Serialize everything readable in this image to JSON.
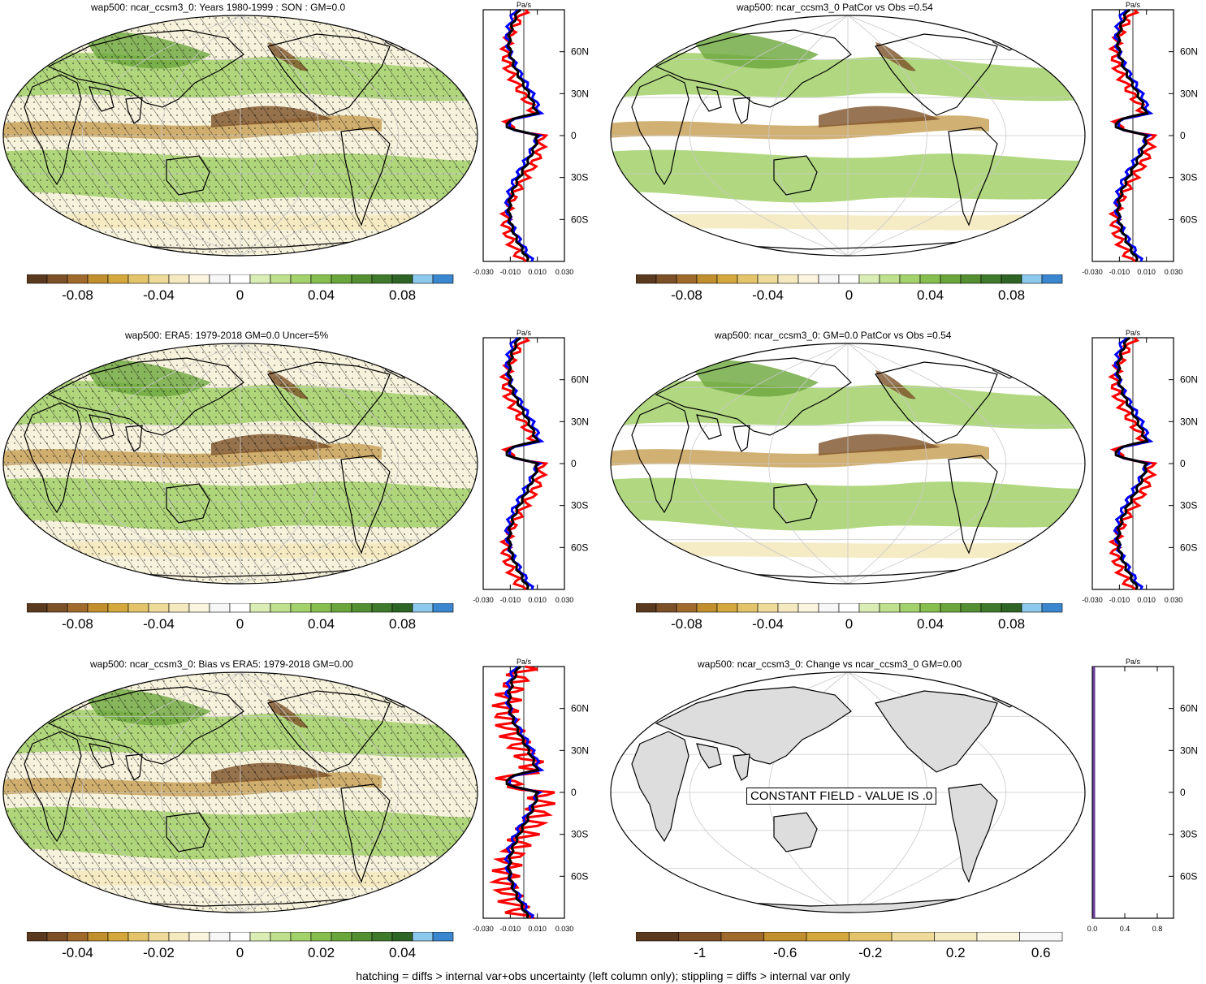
{
  "panels": [
    {
      "id": "p1",
      "title": "wap500: ncar_ccsm3_0: Years 1980-1999 : SON : GM=0.0",
      "hatched": true,
      "stippled": true,
      "constant": false,
      "cbar": "c1"
    },
    {
      "id": "p2",
      "title": "wap500: ncar_ccsm3_0 PatCor vs Obs =0.54",
      "hatched": false,
      "stippled": false,
      "constant": false,
      "cbar": "c1"
    },
    {
      "id": "p3",
      "title": "wap500: ERA5: 1979-2018 GM=0.0 Uncer=5%",
      "hatched": true,
      "stippled": true,
      "constant": false,
      "cbar": "c1"
    },
    {
      "id": "p4",
      "title": "wap500: ncar_ccsm3_0: GM=0.0 PatCor vs Obs =0.54",
      "hatched": false,
      "stippled": false,
      "constant": false,
      "cbar": "c1"
    },
    {
      "id": "p5",
      "title": "wap500: ncar_ccsm3_0: Bias vs ERA5: 1979-2018  GM=0.00",
      "hatched": true,
      "stippled": true,
      "constant": false,
      "cbar": "c2"
    },
    {
      "id": "p6",
      "title": "wap500: ncar_ccsm3_0: Change vs ncar_ccsm3_0 GM=0.00",
      "hatched": false,
      "stippled": false,
      "constant": true,
      "cbar": "c3"
    }
  ],
  "constant_field_text": "CONSTANT FIELD - VALUE IS .0",
  "profile": {
    "unit": "Pa/s",
    "lat_labels": [
      "60N",
      "30N",
      "0",
      "30S",
      "60S"
    ],
    "x_labels_std": [
      "-0.030",
      "-0.010",
      "0.010",
      "0.030"
    ],
    "x_labels_const": [
      "0.0",
      "0.4",
      "0.8"
    ]
  },
  "colorbars": {
    "c1": {
      "labels": [
        "-0.08",
        "-0.04",
        "0",
        "0.04",
        "0.08"
      ],
      "colors": [
        "#5a3a1e",
        "#7d5128",
        "#a06a2c",
        "#c28f2f",
        "#d4a83c",
        "#e3c46b",
        "#eedb9a",
        "#f4e9bf",
        "#fbf5df",
        "#f7f7f7",
        "#ffffff",
        "#d9edb4",
        "#bfe08c",
        "#a3d16b",
        "#86bf4f",
        "#6ba63c",
        "#548f32",
        "#3f7a2c",
        "#2e6526",
        "#8cc9ec",
        "#3b87cf"
      ]
    },
    "c2": {
      "labels": [
        "-0.04",
        "-0.02",
        "0",
        "0.02",
        "0.04"
      ],
      "colors": [
        "#5a3a1e",
        "#7d5128",
        "#a06a2c",
        "#c28f2f",
        "#d4a83c",
        "#e3c46b",
        "#eedb9a",
        "#f4e9bf",
        "#fbf5df",
        "#f7f7f7",
        "#ffffff",
        "#d9edb4",
        "#bfe08c",
        "#a3d16b",
        "#86bf4f",
        "#6ba63c",
        "#548f32",
        "#3f7a2c",
        "#2e6526",
        "#8cc9ec",
        "#3b87cf"
      ]
    },
    "c3": {
      "labels": [
        "-1",
        "-0.6",
        "-0.2",
        "0.2",
        "0.6"
      ],
      "colors": [
        "#5a3a1e",
        "#7d5128",
        "#a06a2c",
        "#c28f2f",
        "#d4a83c",
        "#e3c46b",
        "#eedb9a",
        "#f4e9bf",
        "#fbf5df",
        "#f7f7f7"
      ]
    }
  },
  "line_colors": {
    "model": "#0000ff",
    "obs": "#ff0000",
    "third": "#000000"
  },
  "footer": "hatching = diffs > internal var+obs uncertainty (left column only); stippling = diffs > internal var only"
}
